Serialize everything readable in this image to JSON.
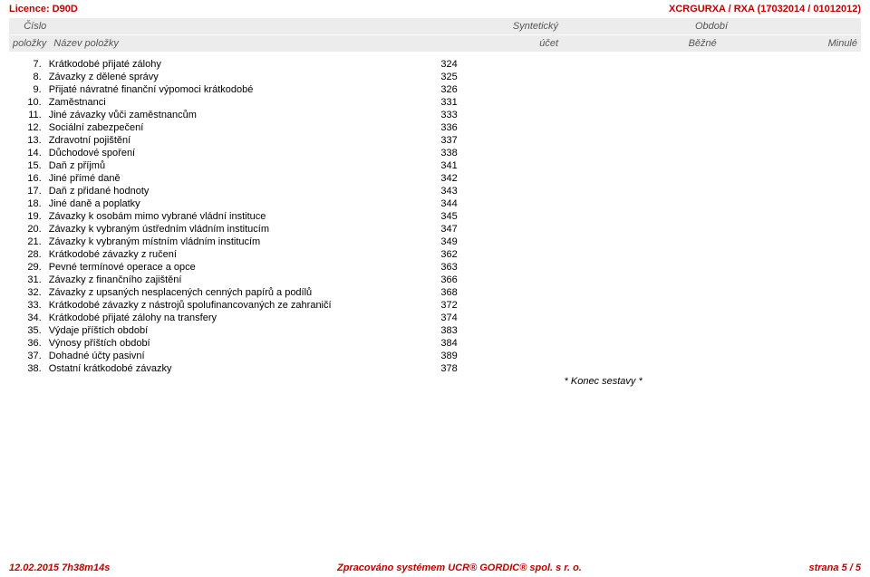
{
  "top": {
    "left": "Licence: D90D",
    "right": "XCRGURXA / RXA (17032014 / 01012012)"
  },
  "header": {
    "row1_num": "Číslo",
    "row1_synth": "Syntetický",
    "row1_period": "Období",
    "row2_polozky": "položky",
    "row2_name": "Název položky",
    "row2_synth": "účet",
    "row2_curr": "Běžné",
    "row2_prev": "Minulé"
  },
  "rows": [
    {
      "n": "7.",
      "name": "Krátkodobé přijaté zálohy",
      "acct": "324"
    },
    {
      "n": "8.",
      "name": "Závazky z dělené správy",
      "acct": "325"
    },
    {
      "n": "9.",
      "name": "Přijaté návratné finanční výpomoci krátkodobé",
      "acct": "326"
    },
    {
      "n": "10.",
      "name": "Zaměstnanci",
      "acct": "331"
    },
    {
      "n": "11.",
      "name": "Jiné závazky vůči zaměstnancům",
      "acct": "333"
    },
    {
      "n": "12.",
      "name": "Sociální zabezpečení",
      "acct": "336"
    },
    {
      "n": "13.",
      "name": "Zdravotní pojištění",
      "acct": "337"
    },
    {
      "n": "14.",
      "name": "Důchodové spoření",
      "acct": "338"
    },
    {
      "n": "15.",
      "name": "Daň z příjmů",
      "acct": "341"
    },
    {
      "n": "16.",
      "name": "Jiné přímé daně",
      "acct": "342"
    },
    {
      "n": "17.",
      "name": "Daň z přidané hodnoty",
      "acct": "343"
    },
    {
      "n": "18.",
      "name": "Jiné daně a poplatky",
      "acct": "344"
    },
    {
      "n": "19.",
      "name": "Závazky k osobám mimo vybrané vládní instituce",
      "acct": "345"
    },
    {
      "n": "20.",
      "name": "Závazky k vybraným ústředním vládním institucím",
      "acct": "347"
    },
    {
      "n": "21.",
      "name": "Závazky k vybraným místním vládním institucím",
      "acct": "349"
    },
    {
      "n": "28.",
      "name": "Krátkodobé závazky z ručení",
      "acct": "362"
    },
    {
      "n": "29.",
      "name": "Pevné termínové operace a opce",
      "acct": "363"
    },
    {
      "n": "31.",
      "name": "Závazky z finančního zajištění",
      "acct": "366"
    },
    {
      "n": "32.",
      "name": "Závazky z upsaných nesplacených cenných papírů a podílů",
      "acct": "368"
    },
    {
      "n": "33.",
      "name": "Krátkodobé závazky z nástrojů spolufinancovaných ze zahraničí",
      "acct": "372"
    },
    {
      "n": "34.",
      "name": "Krátkodobé přijaté zálohy na transfery",
      "acct": "374"
    },
    {
      "n": "35.",
      "name": "Výdaje příštích období",
      "acct": "383"
    },
    {
      "n": "36.",
      "name": "Výnosy příštích období",
      "acct": "384"
    },
    {
      "n": "37.",
      "name": "Dohadné účty pasivní",
      "acct": "389"
    },
    {
      "n": "38.",
      "name": "Ostatní krátkodobé závazky",
      "acct": "378"
    }
  ],
  "end_note": "* Konec sestavy *",
  "footer": {
    "left": "12.02.2015 7h38m14s",
    "center": "Zpracováno systémem  UCR® GORDIC® spol.  s  r.  o.",
    "right": "strana 5 / 5"
  }
}
